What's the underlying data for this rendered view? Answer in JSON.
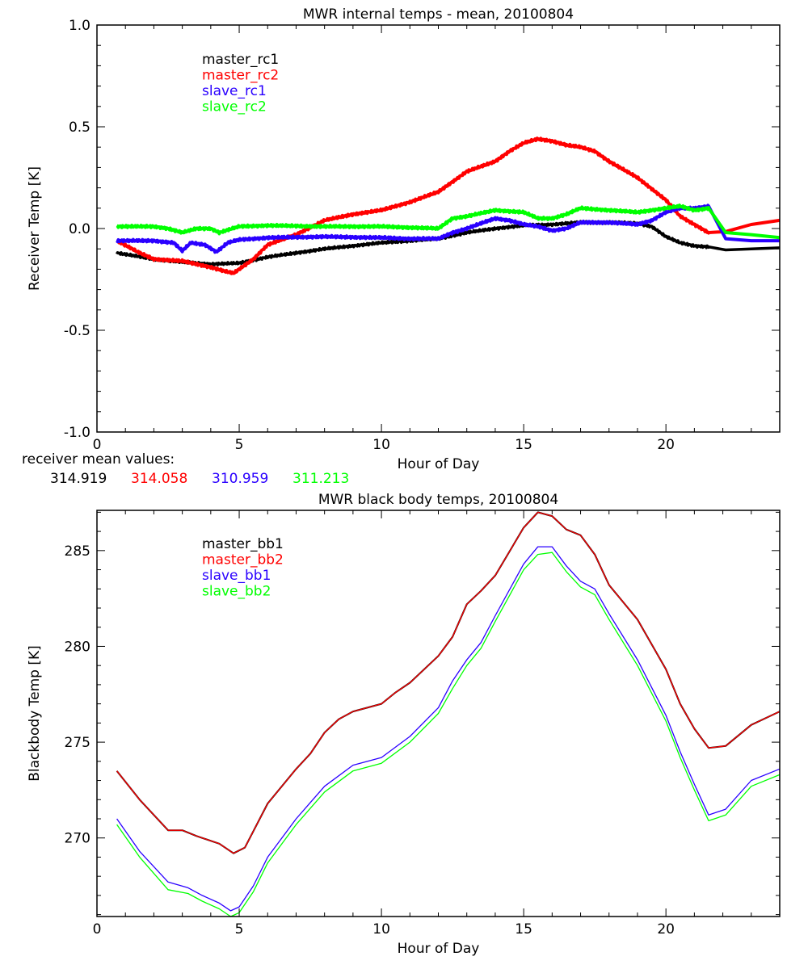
{
  "colors": {
    "black": "#000000",
    "red": "#ff0000",
    "blue": "#2a00ff",
    "green": "#00ff00"
  },
  "chart_data": [
    {
      "type": "line",
      "title": "MWR internal temps - mean, 20100804",
      "xlabel": "Hour of Day",
      "ylabel": "Receiver Temp [K]",
      "xlim": [
        0,
        24
      ],
      "ylim": [
        -1.0,
        1.0
      ],
      "xticks": [
        "0",
        "5",
        "10",
        "15",
        "20"
      ],
      "yticks": [
        "-1.0",
        "-0.5",
        "0.0",
        "0.5",
        "1.0"
      ],
      "legend_position": "top-left",
      "series": [
        {
          "name": "master_rc1",
          "color": "#000000",
          "x": [
            0.7,
            2,
            3,
            4,
            5,
            6,
            7,
            8,
            9,
            10,
            11,
            12,
            13,
            14,
            15,
            16,
            17,
            18,
            19,
            19.5,
            20,
            20.5,
            21,
            21.5,
            22.1,
            23,
            24
          ],
          "y": [
            -0.12,
            -0.15,
            -0.165,
            -0.175,
            -0.17,
            -0.14,
            -0.12,
            -0.1,
            -0.085,
            -0.07,
            -0.06,
            -0.05,
            -0.02,
            0.0,
            0.015,
            0.02,
            0.03,
            0.03,
            0.025,
            0.01,
            -0.04,
            -0.07,
            -0.085,
            -0.09,
            -0.105,
            -0.1,
            -0.095
          ]
        },
        {
          "name": "master_rc2",
          "color": "#ff0000",
          "x": [
            0.7,
            1.5,
            2,
            3,
            4,
            4.5,
            4.8,
            5.5,
            6,
            7,
            8,
            9,
            10,
            11,
            12,
            13,
            14,
            14.5,
            15,
            15.5,
            16,
            16.5,
            17,
            17.5,
            18,
            19,
            20,
            20.5,
            21,
            21.5,
            22.1,
            23,
            24
          ],
          "y": [
            -0.06,
            -0.12,
            -0.15,
            -0.16,
            -0.19,
            -0.21,
            -0.22,
            -0.15,
            -0.08,
            -0.03,
            0.04,
            0.07,
            0.09,
            0.13,
            0.18,
            0.28,
            0.33,
            0.38,
            0.42,
            0.44,
            0.43,
            0.41,
            0.4,
            0.38,
            0.33,
            0.25,
            0.14,
            0.06,
            0.02,
            -0.02,
            -0.015,
            0.02,
            0.04
          ]
        },
        {
          "name": "slave_rc1",
          "color": "#2a00ff",
          "x": [
            0.7,
            2,
            2.7,
            3,
            3.3,
            3.8,
            4.2,
            4.6,
            5,
            6,
            8,
            10,
            11,
            12,
            12.5,
            13,
            14,
            14.5,
            15,
            15.5,
            16,
            16.5,
            17,
            18,
            19,
            19.5,
            20,
            20.5,
            21,
            21.5,
            22.1,
            23,
            24
          ],
          "y": [
            -0.06,
            -0.06,
            -0.07,
            -0.11,
            -0.07,
            -0.08,
            -0.115,
            -0.07,
            -0.055,
            -0.045,
            -0.04,
            -0.045,
            -0.05,
            -0.05,
            -0.02,
            0.0,
            0.05,
            0.04,
            0.02,
            0.01,
            -0.01,
            0.0,
            0.03,
            0.03,
            0.02,
            0.04,
            0.08,
            0.1,
            0.1,
            0.11,
            -0.05,
            -0.06,
            -0.06
          ]
        },
        {
          "name": "slave_rc2",
          "color": "#00ff00",
          "x": [
            0.7,
            2,
            2.5,
            3,
            3.5,
            4,
            4.3,
            5,
            6,
            8,
            10,
            11,
            12,
            12.5,
            13,
            14,
            15,
            15.5,
            16,
            16.5,
            17,
            18,
            19,
            20,
            20.5,
            21,
            21.5,
            22.1,
            23,
            24
          ],
          "y": [
            0.01,
            0.01,
            0.0,
            -0.02,
            0.0,
            0.0,
            -0.02,
            0.01,
            0.015,
            0.01,
            0.01,
            0.005,
            0.0,
            0.05,
            0.06,
            0.09,
            0.08,
            0.05,
            0.05,
            0.07,
            0.1,
            0.09,
            0.08,
            0.1,
            0.11,
            0.09,
            0.1,
            -0.02,
            -0.03,
            -0.045
          ]
        }
      ],
      "annotation": {
        "label": "receiver mean values:",
        "values": [
          {
            "text": "314.919",
            "color": "#000000"
          },
          {
            "text": "314.058",
            "color": "#ff0000"
          },
          {
            "text": "310.959",
            "color": "#2a00ff"
          },
          {
            "text": "311.213",
            "color": "#00ff00"
          }
        ]
      }
    },
    {
      "type": "line",
      "title": "MWR black body temps, 20100804",
      "xlabel": "Hour of Day",
      "ylabel": "Blackbody Temp [K]",
      "xlim": [
        0,
        24
      ],
      "ylim": [
        265.9,
        287.1
      ],
      "xticks": [
        "0",
        "5",
        "10",
        "15",
        "20"
      ],
      "yticks": [
        "270",
        "275",
        "280",
        "285"
      ],
      "legend_position": "top-left",
      "series": [
        {
          "name": "master_bb1",
          "color": "#000000",
          "x": [
            0.7,
            1.5,
            2.5,
            3,
            3.5,
            4.3,
            4.8,
            5.2,
            6,
            7,
            7.5,
            8,
            8.5,
            9,
            10,
            10.5,
            11,
            12,
            12.5,
            13,
            13.5,
            14,
            15,
            15.5,
            16,
            16.5,
            17,
            17.5,
            18,
            19,
            20,
            20.5,
            21,
            21.5,
            22.1,
            23,
            24
          ],
          "y": [
            273.5,
            272,
            270.4,
            270.4,
            270.1,
            269.7,
            269.2,
            269.5,
            271.8,
            273.6,
            274.4,
            275.5,
            276.2,
            276.6,
            277,
            277.6,
            278.1,
            279.5,
            280.5,
            282.2,
            282.9,
            283.7,
            286.2,
            287,
            286.8,
            286.1,
            285.8,
            284.8,
            283.2,
            281.4,
            278.8,
            277,
            275.7,
            274.7,
            274.8,
            275.9,
            276.6
          ]
        },
        {
          "name": "master_bb2",
          "color": "#ff0000",
          "x": [
            0.7,
            1.5,
            2.5,
            3,
            3.5,
            4.3,
            4.8,
            5.2,
            6,
            7,
            7.5,
            8,
            8.5,
            9,
            10,
            10.5,
            11,
            12,
            12.5,
            13,
            13.5,
            14,
            15,
            15.5,
            16,
            16.5,
            17,
            17.5,
            18,
            19,
            20,
            20.5,
            21,
            21.5,
            22.1,
            23,
            24
          ],
          "y": [
            273.5,
            272,
            270.4,
            270.4,
            270.1,
            269.7,
            269.2,
            269.5,
            271.8,
            273.6,
            274.4,
            275.5,
            276.2,
            276.6,
            277,
            277.6,
            278.1,
            279.5,
            280.5,
            282.2,
            282.9,
            283.7,
            286.2,
            287,
            286.8,
            286.1,
            285.8,
            284.8,
            283.2,
            281.4,
            278.8,
            277,
            275.7,
            274.7,
            274.8,
            275.9,
            276.6
          ]
        },
        {
          "name": "slave_bb1",
          "color": "#2a00ff",
          "x": [
            0.7,
            1.5,
            2.5,
            3.2,
            3.7,
            4.3,
            4.7,
            5,
            5.5,
            6,
            7,
            8,
            9,
            10,
            11,
            12,
            12.5,
            13,
            13.5,
            14,
            15,
            15.5,
            16,
            16.5,
            17,
            17.5,
            18,
            19,
            20,
            20.5,
            21,
            21.5,
            22.1,
            23,
            24
          ],
          "y": [
            271,
            269.3,
            267.7,
            267.4,
            267.0,
            266.6,
            266.2,
            266.4,
            267.5,
            269,
            271,
            272.7,
            273.8,
            274.2,
            275.3,
            276.8,
            278.2,
            279.3,
            280.2,
            281.6,
            284.3,
            285.2,
            285.2,
            284.2,
            283.4,
            283,
            281.7,
            279.3,
            276.4,
            274.5,
            272.8,
            271.2,
            271.5,
            273,
            273.6
          ]
        },
        {
          "name": "slave_bb2",
          "color": "#00ff00",
          "x": [
            0.7,
            1.5,
            2.5,
            3.2,
            3.7,
            4.3,
            4.7,
            5,
            5.5,
            6,
            7,
            8,
            9,
            10,
            11,
            12,
            12.5,
            13,
            13.5,
            14,
            15,
            15.5,
            16,
            16.5,
            17,
            17.5,
            18,
            19,
            20,
            20.5,
            21,
            21.5,
            22.1,
            23,
            24
          ],
          "y": [
            270.7,
            269,
            267.3,
            267.1,
            266.7,
            266.3,
            265.9,
            266.1,
            267.2,
            268.7,
            270.7,
            272.4,
            273.5,
            273.9,
            275,
            276.5,
            277.8,
            279,
            279.9,
            281.3,
            284,
            284.8,
            284.9,
            283.9,
            283.1,
            282.7,
            281.4,
            279,
            276.1,
            274.2,
            272.5,
            270.9,
            271.2,
            272.7,
            273.3
          ]
        }
      ]
    }
  ]
}
